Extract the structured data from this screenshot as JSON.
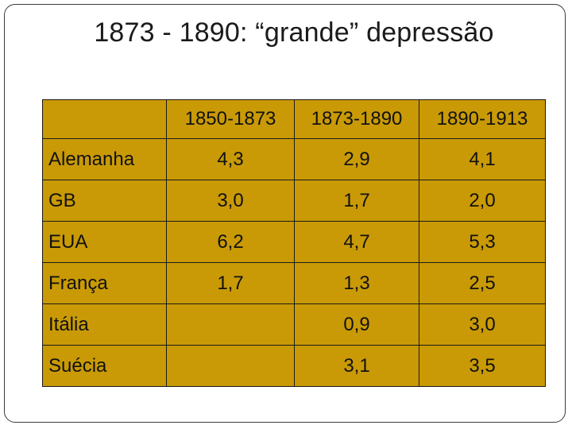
{
  "slide": {
    "title": "1873 - 1890: “grande” depressão"
  },
  "table": {
    "header": [
      "",
      "1850-1873",
      "1873-1890",
      "1890-1913"
    ],
    "rows": [
      {
        "country": "Alemanha",
        "values": [
          "4,3",
          "2,9",
          "4,1"
        ]
      },
      {
        "country": "GB",
        "values": [
          "3,0",
          "1,7",
          "2,0"
        ]
      },
      {
        "country": "EUA",
        "values": [
          "6,2",
          "4,7",
          "5,3"
        ]
      },
      {
        "country": "França",
        "values": [
          "1,7",
          "1,3",
          "2,5"
        ]
      },
      {
        "country": "Itália",
        "values": [
          "",
          "0,9",
          "3,0"
        ]
      },
      {
        "country": "Suécia",
        "values": [
          "",
          "3,1",
          "3,5"
        ]
      }
    ]
  },
  "colors": {
    "table_fill": "#c99a06",
    "border": "#1a1a1a"
  }
}
